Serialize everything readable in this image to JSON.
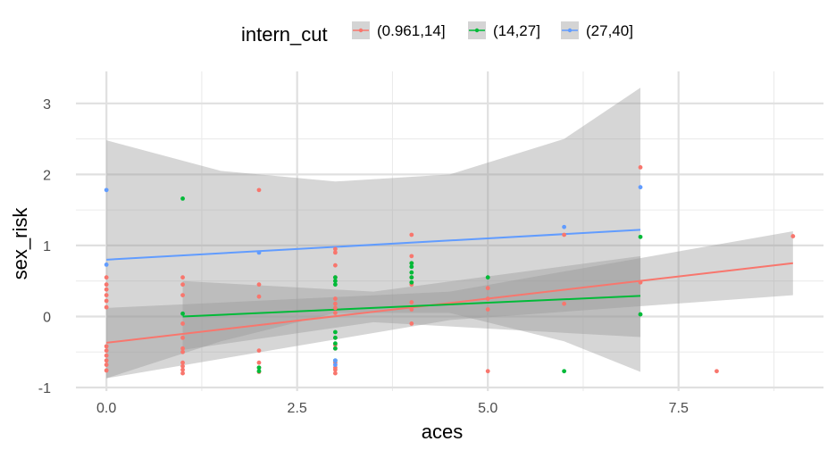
{
  "chart_data": {
    "type": "scatter",
    "xlabel": "aces",
    "ylabel": "sex_risk",
    "xlim": [
      -0.4,
      9.4
    ],
    "ylim": [
      -1.05,
      3.45
    ],
    "x_ticks": [
      0.0,
      2.5,
      5.0,
      7.5
    ],
    "x_tick_labels": [
      "0.0",
      "2.5",
      "5.0",
      "7.5"
    ],
    "y_ticks": [
      -1,
      0,
      1,
      2,
      3
    ],
    "y_tick_labels": [
      "-1",
      "0",
      "1",
      "2",
      "3"
    ],
    "grid": true,
    "legend": {
      "title": "intern_cut",
      "position": "top"
    },
    "series": [
      {
        "name": "(0.961,14]",
        "color": "#F8766D",
        "points": [
          [
            0,
            0.55
          ],
          [
            0,
            0.45
          ],
          [
            0,
            0.38
          ],
          [
            0,
            0.3
          ],
          [
            0,
            0.22
          ],
          [
            0,
            0.13
          ],
          [
            0,
            -0.42
          ],
          [
            0,
            -0.48
          ],
          [
            0,
            -0.55
          ],
          [
            0,
            -0.62
          ],
          [
            0,
            -0.68
          ],
          [
            0,
            -0.76
          ],
          [
            1,
            0.55
          ],
          [
            1,
            0.45
          ],
          [
            1,
            0.3
          ],
          [
            1,
            -0.1
          ],
          [
            1,
            -0.3
          ],
          [
            1,
            -0.45
          ],
          [
            1,
            -0.5
          ],
          [
            1,
            -0.65
          ],
          [
            1,
            -0.7
          ],
          [
            1,
            -0.75
          ],
          [
            1,
            -0.8
          ],
          [
            2,
            1.78
          ],
          [
            2,
            0.45
          ],
          [
            2,
            0.28
          ],
          [
            2,
            -0.48
          ],
          [
            2,
            -0.65
          ],
          [
            2,
            -0.72
          ],
          [
            2,
            -0.78
          ],
          [
            3,
            0.95
          ],
          [
            3,
            0.9
          ],
          [
            3,
            0.72
          ],
          [
            3,
            0.55
          ],
          [
            3,
            0.25
          ],
          [
            3,
            0.18
          ],
          [
            3,
            0.12
          ],
          [
            3,
            0.05
          ],
          [
            3,
            -0.3
          ],
          [
            3,
            -0.4
          ],
          [
            3,
            -0.45
          ],
          [
            3,
            -0.65
          ],
          [
            3,
            -0.72
          ],
          [
            3,
            -0.75
          ],
          [
            3,
            -0.8
          ],
          [
            4,
            1.15
          ],
          [
            4,
            0.85
          ],
          [
            4,
            0.75
          ],
          [
            4,
            0.55
          ],
          [
            4,
            0.45
          ],
          [
            4,
            0.2
          ],
          [
            4,
            0.1
          ],
          [
            4,
            -0.1
          ],
          [
            5,
            0.4
          ],
          [
            5,
            0.25
          ],
          [
            5,
            0.1
          ],
          [
            5,
            -0.77
          ],
          [
            6,
            1.15
          ],
          [
            6,
            0.18
          ],
          [
            7,
            2.1
          ],
          [
            7,
            0.48
          ],
          [
            8,
            -0.77
          ],
          [
            9,
            1.13
          ]
        ],
        "fit": {
          "x": [
            0,
            9
          ],
          "y": [
            -0.37,
            0.75
          ]
        },
        "band": {
          "x": [
            0,
            4.5,
            9
          ],
          "lower": [
            -0.87,
            -0.05,
            0.3
          ],
          "upper": [
            0.12,
            0.35,
            1.2
          ]
        }
      },
      {
        "name": "(14,27]",
        "color": "#00BA38",
        "points": [
          [
            1,
            1.66
          ],
          [
            1,
            0.04
          ],
          [
            2,
            -0.72
          ],
          [
            2,
            -0.77
          ],
          [
            3,
            0.55
          ],
          [
            3,
            0.5
          ],
          [
            3,
            0.45
          ],
          [
            3,
            -0.22
          ],
          [
            3,
            -0.3
          ],
          [
            3,
            -0.38
          ],
          [
            3,
            -0.45
          ],
          [
            3,
            -0.62
          ],
          [
            4,
            0.75
          ],
          [
            4,
            0.7
          ],
          [
            4,
            0.62
          ],
          [
            4,
            0.55
          ],
          [
            4,
            0.48
          ],
          [
            5,
            0.55
          ],
          [
            6,
            -0.77
          ],
          [
            7,
            1.12
          ],
          [
            7,
            0.03
          ]
        ],
        "fit": {
          "x": [
            1,
            7
          ],
          "y": [
            0.0,
            0.29
          ]
        },
        "band": {
          "x": [
            1,
            3.5,
            7
          ],
          "lower": [
            -0.47,
            -0.08,
            -0.29
          ],
          "upper": [
            0.5,
            0.35,
            0.85
          ]
        }
      },
      {
        "name": "(27,40]",
        "color": "#619CFF",
        "points": [
          [
            0,
            1.78
          ],
          [
            0,
            0.73
          ],
          [
            2,
            0.9
          ],
          [
            3,
            -0.62
          ],
          [
            3,
            -0.68
          ],
          [
            6,
            1.26
          ],
          [
            7,
            1.82
          ]
        ],
        "fit": {
          "x": [
            0,
            7
          ],
          "y": [
            0.8,
            1.22
          ]
        },
        "band": {
          "x": [
            0,
            1.5,
            3,
            4.5,
            6,
            7
          ],
          "lower": [
            -0.87,
            -0.35,
            0.05,
            0.05,
            -0.35,
            -0.78
          ],
          "upper": [
            2.48,
            2.05,
            1.9,
            2.0,
            2.5,
            3.22
          ]
        }
      }
    ]
  }
}
